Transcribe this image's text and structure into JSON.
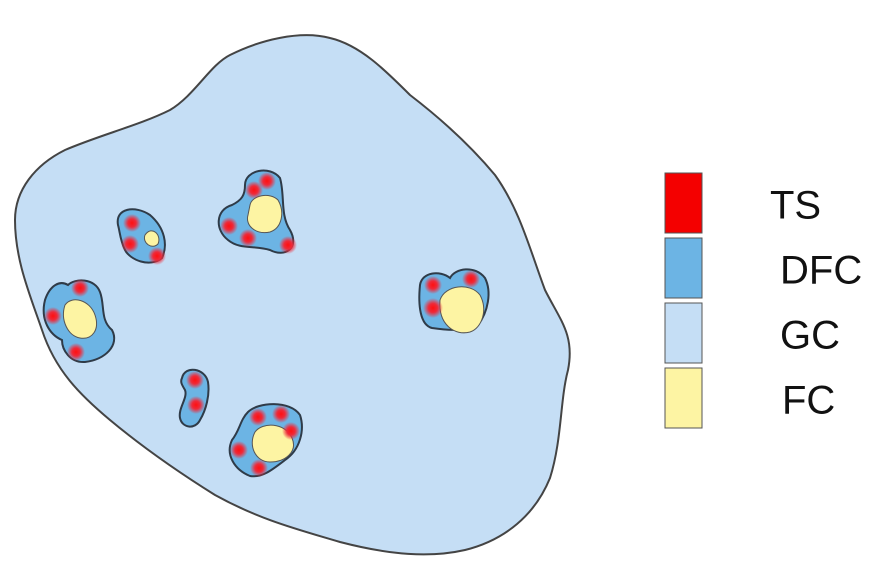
{
  "legend": {
    "items": [
      {
        "label": "TS"
      },
      {
        "label": "DFC"
      },
      {
        "label": "GC"
      },
      {
        "label": "FC"
      }
    ]
  }
}
